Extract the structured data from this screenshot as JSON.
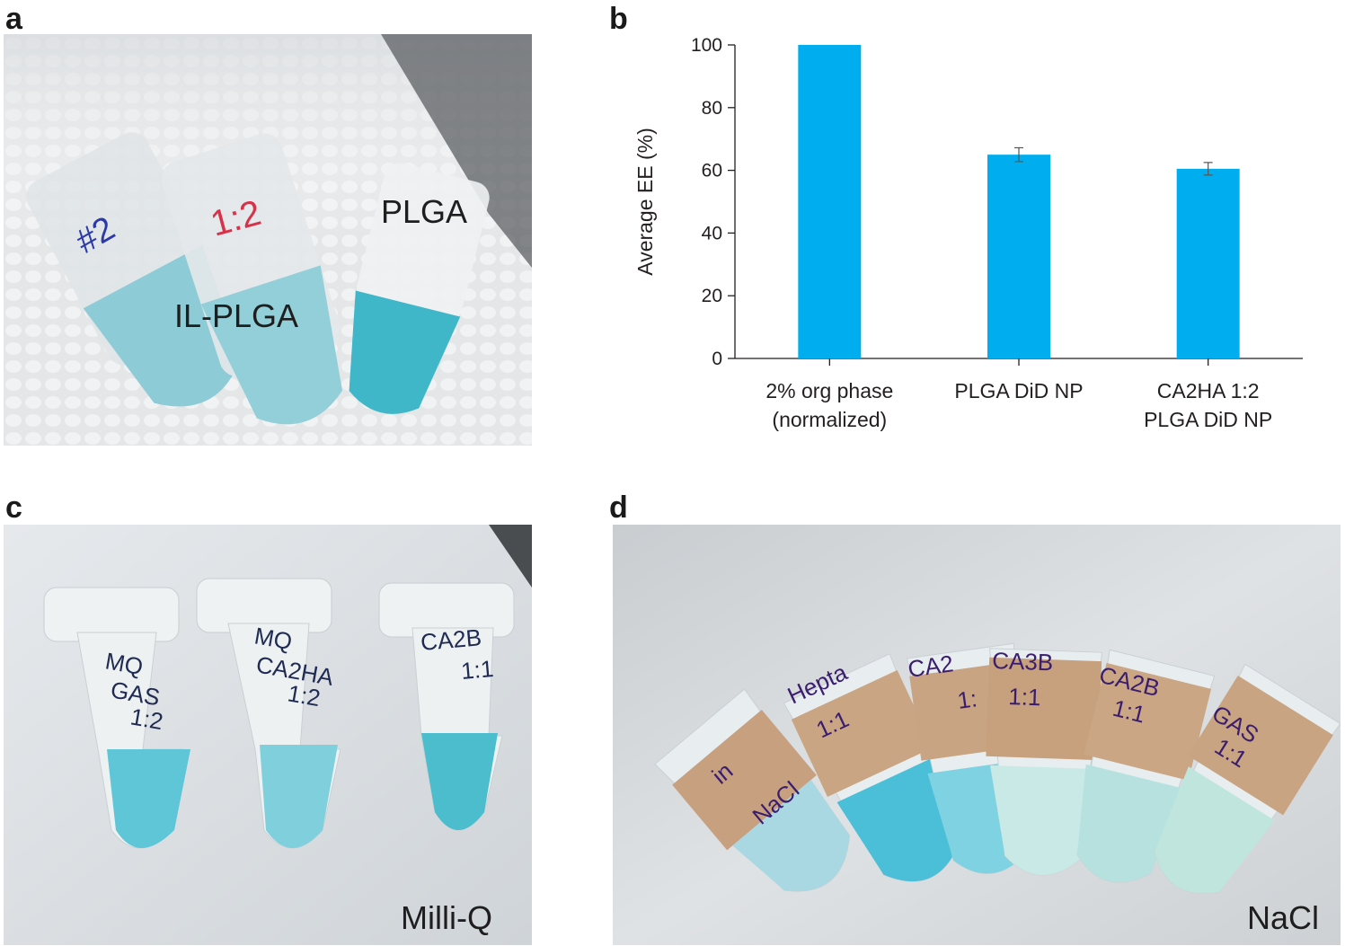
{
  "panels": {
    "a": {
      "letter": "a",
      "labels": {
        "il_plga": "IL-PLGA",
        "plga": "PLGA"
      }
    },
    "b": {
      "letter": "b"
    },
    "c": {
      "letter": "c",
      "label": "Milli-Q",
      "tube_writing": [
        [
          "MQ",
          "GAS",
          "1:2"
        ],
        [
          "MQ",
          "CA2HA",
          "1:2"
        ],
        [
          "CA2B",
          "1:1"
        ]
      ]
    },
    "d": {
      "letter": "d",
      "label": "NaCl",
      "tube_writing": [
        [
          "in",
          "NaCl"
        ],
        [
          "Hepta",
          "1:1"
        ],
        [
          "CA2",
          "1:"
        ],
        [
          "CA3B",
          "1:1"
        ],
        [
          "CA2B",
          "1:1"
        ],
        [
          "GAS",
          "1:1"
        ]
      ]
    }
  },
  "colors": {
    "bar": "#00aeef",
    "solution_blue": "#5ec6d6",
    "tube_clear": "#e9eef0",
    "tape": "#c8a482"
  },
  "chart_data": {
    "type": "bar",
    "categories": [
      [
        "2% org phase",
        "(normalized)"
      ],
      [
        "PLGA DiD NP"
      ],
      [
        "CA2HA 1:2",
        "PLGA DiD NP"
      ]
    ],
    "values": [
      100,
      65,
      60.5
    ],
    "errors": [
      0,
      2.2,
      2.0
    ],
    "title": "",
    "xlabel": "",
    "ylabel": "Average EE (%)",
    "ylim": [
      0,
      100
    ],
    "yticks": [
      0,
      20,
      40,
      60,
      80,
      100
    ],
    "grid": false
  }
}
